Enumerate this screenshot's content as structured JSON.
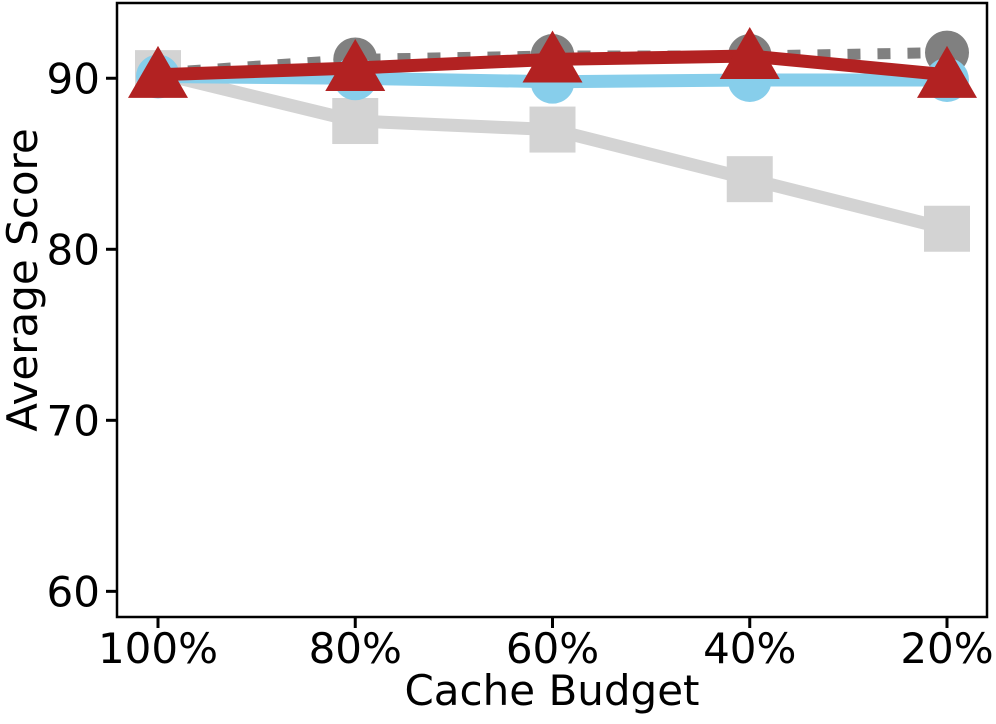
{
  "chart_data": {
    "type": "line",
    "title": "",
    "xlabel": "Cache Budget",
    "ylabel": "Average Score",
    "categories": [
      "100%",
      "80%",
      "60%",
      "40%",
      "20%"
    ],
    "yticks": [
      90,
      80,
      70,
      60
    ],
    "ylim": [
      58.5,
      94.4
    ],
    "grid": false,
    "legend": "none",
    "series": [
      {
        "name": "gray-dashed-circles",
        "color": "#808080",
        "linestyle": "dashed",
        "marker": "circle",
        "values": [
          90.3,
          91.1,
          91.3,
          91.3,
          91.5
        ]
      },
      {
        "name": "lightgray-solid-squares",
        "color": "#D3D3D3",
        "linestyle": "solid",
        "marker": "square",
        "values": [
          90.3,
          87.5,
          87.0,
          84.1,
          81.2
        ]
      },
      {
        "name": "skyblue-solid-circles",
        "color": "#87CEEB",
        "linestyle": "solid",
        "marker": "circle",
        "values": [
          90.1,
          90.0,
          89.8,
          89.9,
          89.9
        ]
      },
      {
        "name": "firebrick-solid-triangles",
        "color": "#B22222",
        "linestyle": "solid",
        "marker": "triangle",
        "values": [
          90.2,
          90.6,
          91.1,
          91.3,
          90.2
        ]
      }
    ],
    "axis_color": "#000000"
  }
}
